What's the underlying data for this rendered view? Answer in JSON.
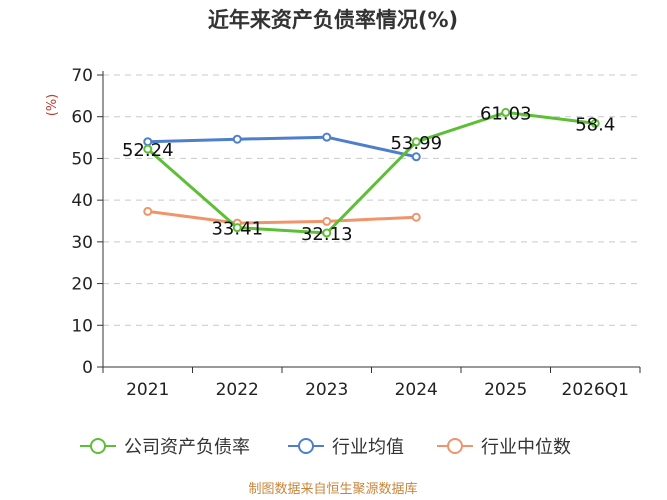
{
  "chart_data": {
    "type": "line",
    "title": "近年来资产负债率情况(%)",
    "ylabel": "(%)",
    "xlabel": "",
    "ylim": [
      0,
      70
    ],
    "yticks": [
      0,
      10,
      20,
      30,
      40,
      50,
      60,
      70
    ],
    "grid": true,
    "legend_position": "bottom",
    "categories": [
      "2021",
      "2022",
      "2023",
      "2024",
      "2025",
      "2026Q1"
    ],
    "series": [
      {
        "name": "公司资产负债率",
        "color": "#5cbf35",
        "values": [
          52.24,
          33.41,
          32.13,
          53.99,
          61.03,
          58.4
        ],
        "labels": [
          "52.24",
          "33.41",
          "32.13",
          "53.99",
          "61.03",
          "58.4"
        ]
      },
      {
        "name": "行业均值",
        "color": "#4f7fcb",
        "values": [
          54.0,
          54.6,
          55.1,
          50.4,
          null,
          null
        ]
      },
      {
        "name": "行业中位数",
        "color": "#f0956b",
        "values": [
          37.3,
          34.5,
          34.9,
          35.9,
          null,
          null
        ]
      }
    ],
    "source": "制图数据来自恒生聚源数据库"
  }
}
